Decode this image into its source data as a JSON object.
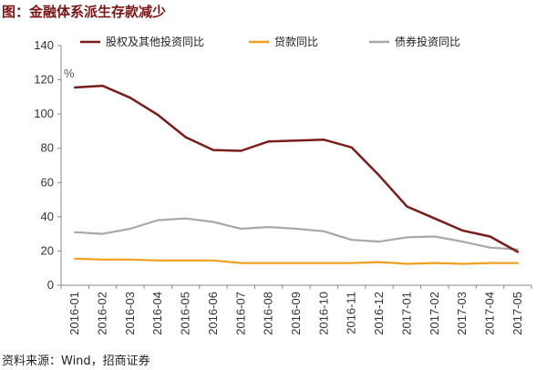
{
  "title": "图：金融体系派生存款减少",
  "source": "资料来源：Wind，招商证券",
  "chart_data": {
    "type": "line",
    "unit_label": "%",
    "categories": [
      "2016-01",
      "2016-02",
      "2016-03",
      "2016-04",
      "2016-05",
      "2016-06",
      "2016-07",
      "2016-08",
      "2016-09",
      "2016-10",
      "2016-11",
      "2016-12",
      "2017-01",
      "2017-02",
      "2017-03",
      "2017-04",
      "2017-05"
    ],
    "ylim": [
      0,
      140
    ],
    "yticks": [
      0,
      20,
      40,
      60,
      80,
      100,
      120,
      140
    ],
    "grid": false,
    "legend_position": "top",
    "series": [
      {
        "name": "股权及其他投资同比",
        "color": "#7b1c1c",
        "values": [
          115.5,
          116.5,
          109.5,
          99.5,
          86.5,
          79,
          78.5,
          84,
          84.5,
          85,
          80.5,
          64,
          46,
          39,
          32,
          28.5,
          19.5
        ]
      },
      {
        "name": "贷款同比",
        "color": "#f0a020",
        "values": [
          15.5,
          15,
          15,
          14.5,
          14.5,
          14.5,
          13,
          13,
          13,
          13,
          13,
          13.5,
          12.5,
          13,
          12.5,
          13,
          13
        ]
      },
      {
        "name": "债券投资同比",
        "color": "#a8a8a8",
        "values": [
          31,
          30,
          33,
          38,
          39,
          37,
          33,
          34,
          33,
          31.5,
          26.5,
          25.5,
          28,
          28.5,
          25.5,
          22,
          21
        ]
      }
    ]
  }
}
